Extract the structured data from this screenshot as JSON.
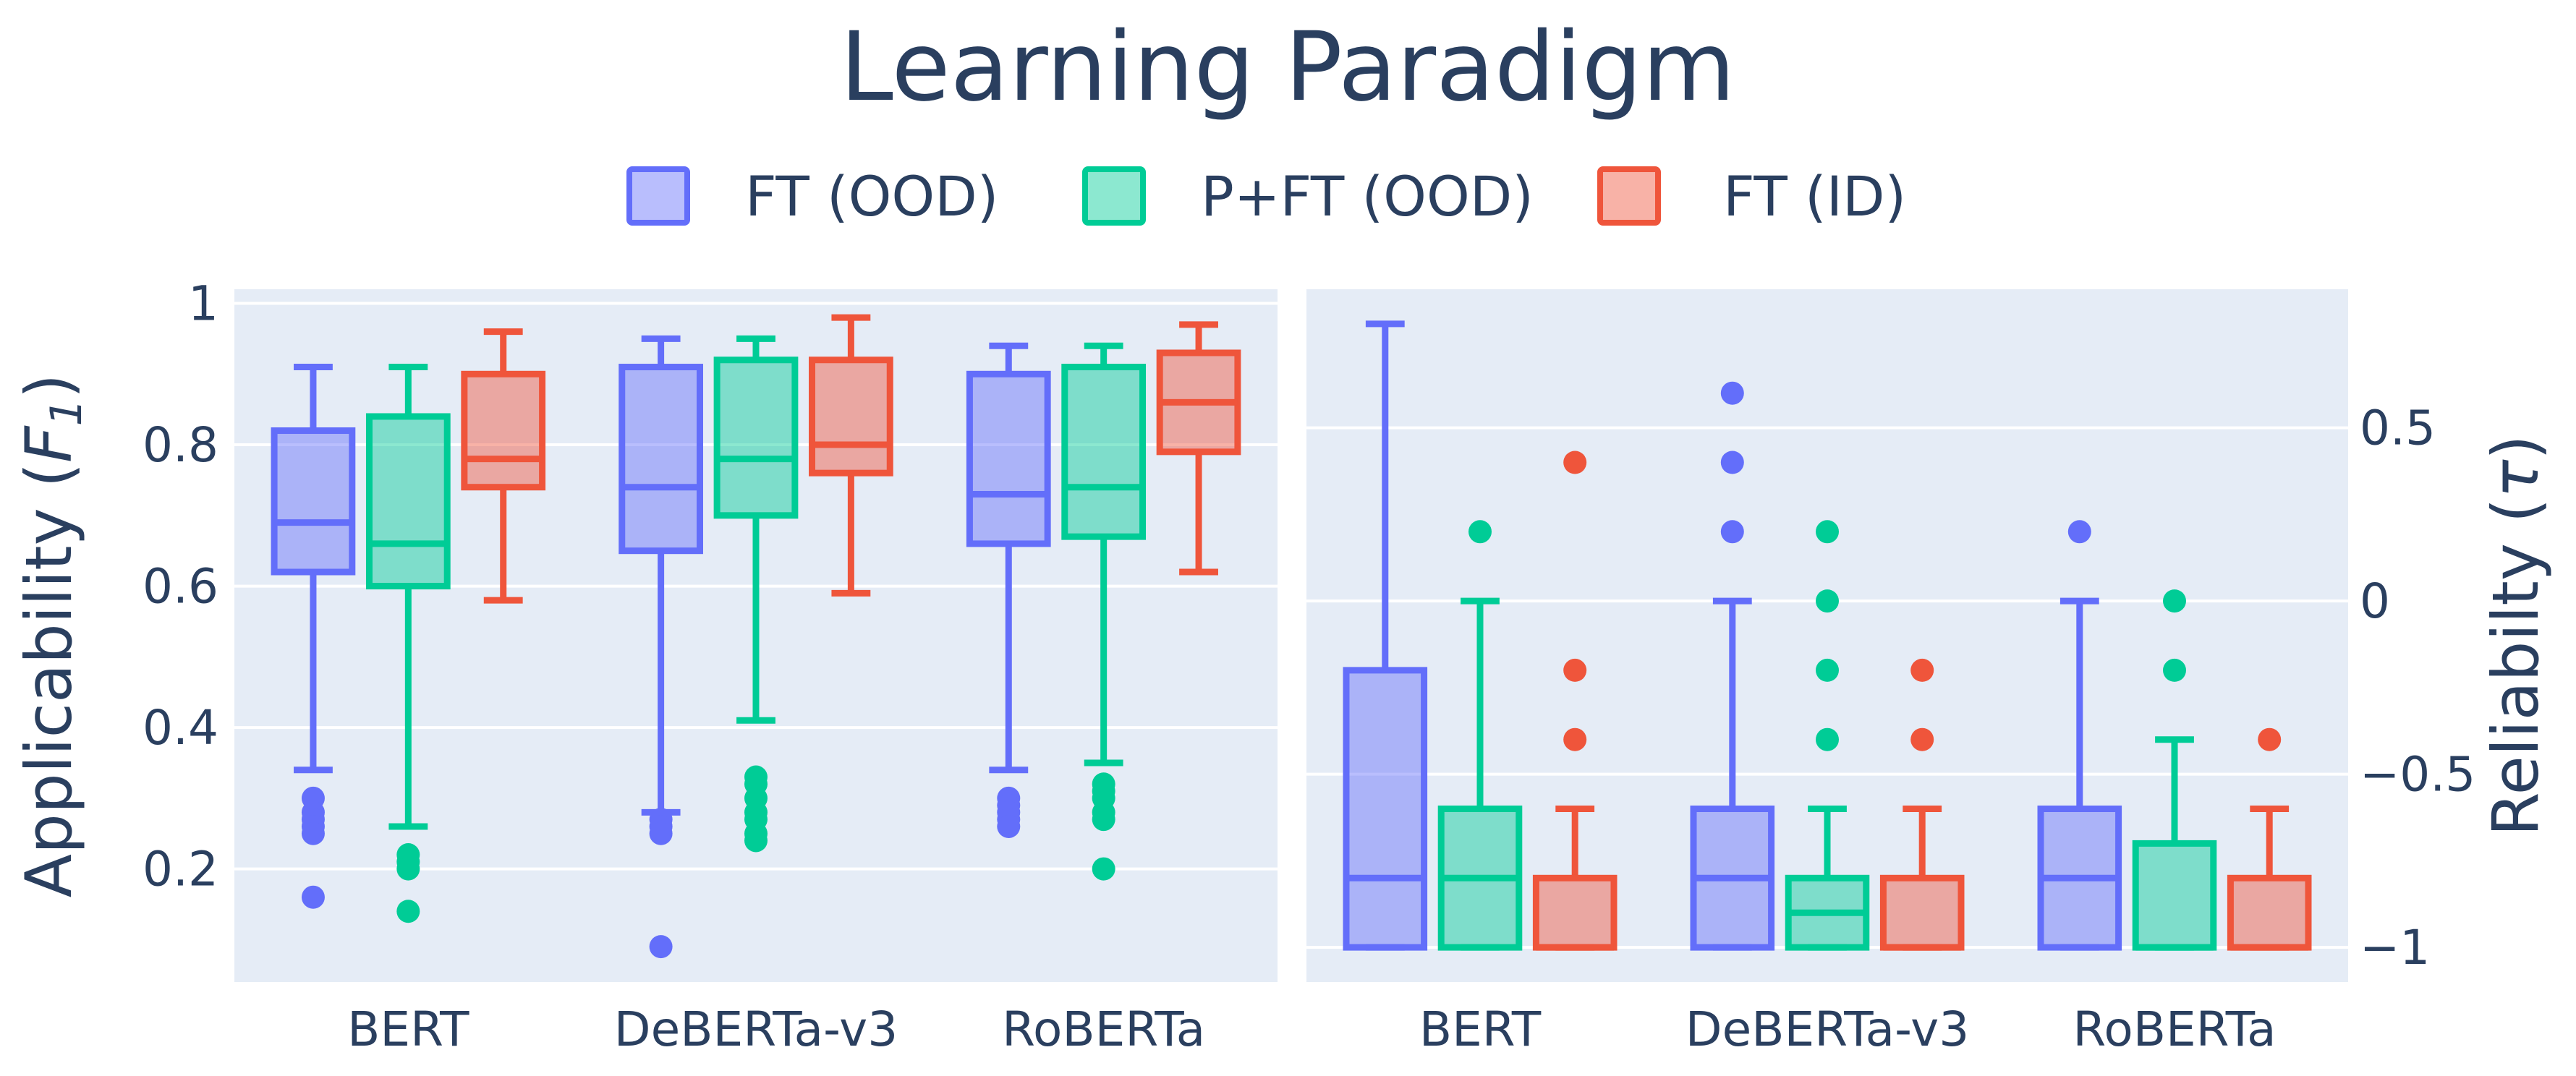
{
  "chart_data": {
    "type": "box",
    "title": "Learning Paradigm",
    "legend": {
      "placement": "top-center",
      "entries": [
        {
          "name": "FT (OOD)",
          "color": "#636efa"
        },
        {
          "name": "P+FT (OOD)",
          "color": "#00cc96"
        },
        {
          "name": "FT (ID)",
          "color": "#ef553b"
        }
      ]
    },
    "panels": [
      {
        "id": "applicability",
        "ylabel": "Applicability (F1)",
        "ylabel_main": "Applicability (",
        "ylabel_symbol": "F",
        "ylabel_subscript": "1",
        "ylabel_close": ")",
        "yaxis_side": "left",
        "ylim": [
          0.04,
          1.02
        ],
        "yticks": [
          0.2,
          0.4,
          0.6,
          0.8,
          1.0
        ],
        "ytick_labels": [
          "0.2",
          "0.4",
          "0.6",
          "0.8",
          "1"
        ],
        "categories": [
          "BERT",
          "DeBERTa-v3",
          "RoBERTa"
        ],
        "series": [
          {
            "name": "FT (OOD)",
            "color": "#636efa",
            "boxes": [
              {
                "min": 0.34,
                "q1": 0.62,
                "median": 0.69,
                "q3": 0.82,
                "max": 0.91,
                "outliers": [
                  0.3,
                  0.28,
                  0.27,
                  0.26,
                  0.25,
                  0.16
                ]
              },
              {
                "min": 0.28,
                "q1": 0.65,
                "median": 0.74,
                "q3": 0.91,
                "max": 0.95,
                "outliers": [
                  0.27,
                  0.26,
                  0.25,
                  0.09
                ]
              },
              {
                "min": 0.34,
                "q1": 0.66,
                "median": 0.73,
                "q3": 0.9,
                "max": 0.94,
                "outliers": [
                  0.3,
                  0.29,
                  0.28,
                  0.27,
                  0.26
                ]
              }
            ]
          },
          {
            "name": "P+FT (OOD)",
            "color": "#00cc96",
            "boxes": [
              {
                "min": 0.26,
                "q1": 0.6,
                "median": 0.66,
                "q3": 0.84,
                "max": 0.91,
                "outliers": [
                  0.22,
                  0.21,
                  0.2,
                  0.14
                ]
              },
              {
                "min": 0.41,
                "q1": 0.7,
                "median": 0.78,
                "q3": 0.92,
                "max": 0.95,
                "outliers": [
                  0.33,
                  0.32,
                  0.3,
                  0.28,
                  0.27,
                  0.25,
                  0.24
                ]
              },
              {
                "min": 0.35,
                "q1": 0.67,
                "median": 0.74,
                "q3": 0.91,
                "max": 0.94,
                "outliers": [
                  0.32,
                  0.31,
                  0.3,
                  0.28,
                  0.27,
                  0.2
                ]
              }
            ]
          },
          {
            "name": "FT (ID)",
            "color": "#ef553b",
            "boxes": [
              {
                "min": 0.58,
                "q1": 0.74,
                "median": 0.78,
                "q3": 0.9,
                "max": 0.96,
                "outliers": []
              },
              {
                "min": 0.59,
                "q1": 0.76,
                "median": 0.8,
                "q3": 0.92,
                "max": 0.98,
                "outliers": []
              },
              {
                "min": 0.62,
                "q1": 0.79,
                "median": 0.86,
                "q3": 0.93,
                "max": 0.97,
                "outliers": []
              }
            ]
          }
        ]
      },
      {
        "id": "reliability",
        "ylabel": "Reliabilty (τ)",
        "ylabel_main": "Reliabilty (",
        "ylabel_symbol": "τ",
        "ylabel_subscript": "",
        "ylabel_close": ")",
        "yaxis_side": "right",
        "ylim": [
          -1.1,
          0.9
        ],
        "yticks": [
          -1,
          -0.5,
          0,
          0.5
        ],
        "ytick_labels": [
          "−1",
          "−0.5",
          "0",
          "0.5"
        ],
        "categories": [
          "BERT",
          "DeBERTa-v3",
          "RoBERTa"
        ],
        "series": [
          {
            "name": "FT (OOD)",
            "color": "#636efa",
            "boxes": [
              {
                "min": -1.0,
                "q1": -1.0,
                "median": -0.8,
                "q3": -0.2,
                "max": 0.8,
                "outliers": []
              },
              {
                "min": -1.0,
                "q1": -1.0,
                "median": -0.8,
                "q3": -0.6,
                "max": 0.0,
                "outliers": [
                  0.6,
                  0.4,
                  0.2
                ]
              },
              {
                "min": -1.0,
                "q1": -1.0,
                "median": -0.8,
                "q3": -0.6,
                "max": 0.0,
                "outliers": [
                  0.2
                ]
              }
            ]
          },
          {
            "name": "P+FT (OOD)",
            "color": "#00cc96",
            "boxes": [
              {
                "min": -1.0,
                "q1": -1.0,
                "median": -0.8,
                "q3": -0.6,
                "max": 0.0,
                "outliers": [
                  0.2
                ]
              },
              {
                "min": -1.0,
                "q1": -1.0,
                "median": -0.9,
                "q3": -0.8,
                "max": -0.6,
                "outliers": [
                  0.2,
                  0.0,
                  -0.2,
                  -0.4
                ]
              },
              {
                "min": -1.0,
                "q1": -1.0,
                "median": -1.0,
                "q3": -0.7,
                "max": -0.4,
                "outliers": [
                  0.0,
                  -0.2
                ]
              }
            ]
          },
          {
            "name": "FT (ID)",
            "color": "#ef553b",
            "boxes": [
              {
                "min": -1.0,
                "q1": -1.0,
                "median": -1.0,
                "q3": -0.8,
                "max": -0.6,
                "outliers": [
                  0.4,
                  -0.2,
                  -0.4
                ]
              },
              {
                "min": -1.0,
                "q1": -1.0,
                "median": -1.0,
                "q3": -0.8,
                "max": -0.6,
                "outliers": [
                  -0.2,
                  -0.4
                ]
              },
              {
                "min": -1.0,
                "q1": -1.0,
                "median": -1.0,
                "q3": -0.8,
                "max": -0.6,
                "outliers": [
                  -0.4
                ]
              }
            ]
          }
        ]
      }
    ]
  }
}
